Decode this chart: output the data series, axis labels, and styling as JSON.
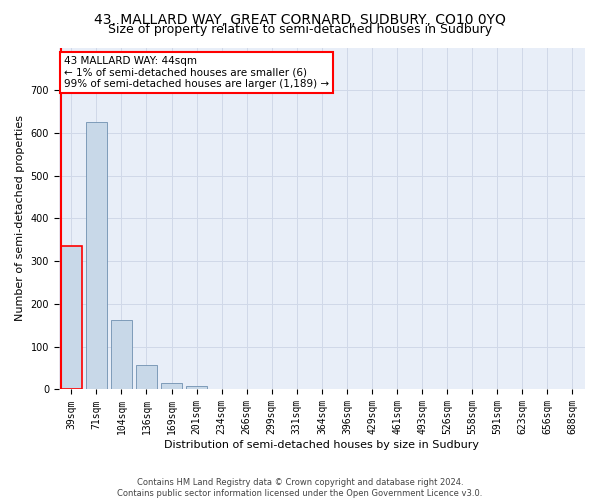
{
  "title": "43, MALLARD WAY, GREAT CORNARD, SUDBURY, CO10 0YQ",
  "subtitle": "Size of property relative to semi-detached houses in Sudbury",
  "xlabel": "Distribution of semi-detached houses by size in Sudbury",
  "ylabel": "Number of semi-detached properties",
  "categories": [
    "39sqm",
    "71sqm",
    "104sqm",
    "136sqm",
    "169sqm",
    "201sqm",
    "234sqm",
    "266sqm",
    "299sqm",
    "331sqm",
    "364sqm",
    "396sqm",
    "429sqm",
    "461sqm",
    "493sqm",
    "526sqm",
    "558sqm",
    "591sqm",
    "623sqm",
    "656sqm",
    "688sqm"
  ],
  "values": [
    335,
    625,
    163,
    58,
    15,
    8,
    0,
    0,
    0,
    0,
    0,
    0,
    0,
    0,
    0,
    0,
    0,
    0,
    0,
    0,
    0
  ],
  "bar_color": "#c8d8e8",
  "bar_edge_color": "#7090b0",
  "highlight_bar_index": 0,
  "highlight_edge_color": "red",
  "annotation_text": "43 MALLARD WAY: 44sqm\n← 1% of semi-detached houses are smaller (6)\n99% of semi-detached houses are larger (1,189) →",
  "annotation_box_color": "white",
  "annotation_box_edge_color": "red",
  "vline_color": "red",
  "ylim": [
    0,
    800
  ],
  "yticks": [
    0,
    100,
    200,
    300,
    400,
    500,
    600,
    700,
    800
  ],
  "grid_color": "#d0d8e8",
  "bg_color": "#e8eef8",
  "footer_line1": "Contains HM Land Registry data © Crown copyright and database right 2024.",
  "footer_line2": "Contains public sector information licensed under the Open Government Licence v3.0.",
  "title_fontsize": 10,
  "subtitle_fontsize": 9,
  "ylabel_fontsize": 8,
  "xlabel_fontsize": 8,
  "tick_fontsize": 7,
  "annotation_fontsize": 7.5,
  "footer_fontsize": 6
}
